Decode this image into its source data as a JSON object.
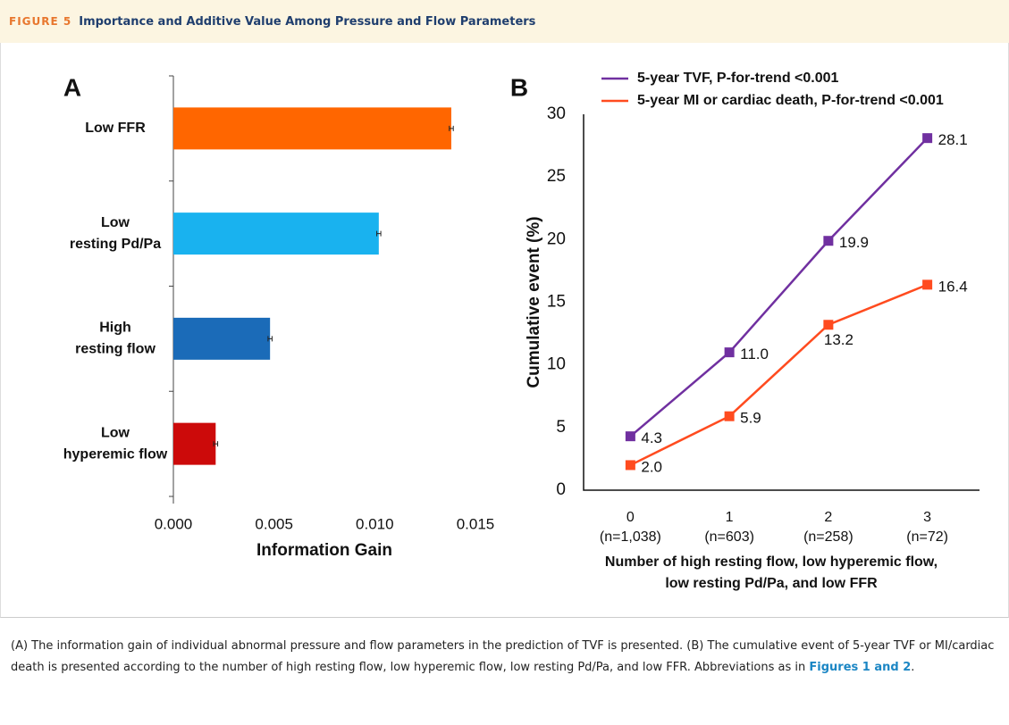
{
  "header": {
    "label": "FIGURE 5",
    "title": "Importance and Additive Value Among Pressure and Flow Parameters"
  },
  "chart_data": [
    {
      "type": "bar",
      "orientation": "horizontal",
      "panel": "A",
      "categories": [
        [
          "Low FFR"
        ],
        [
          "Low",
          "resting Pd/Pa"
        ],
        [
          "High",
          "resting flow"
        ],
        [
          "Low",
          "hyperemic flow"
        ]
      ],
      "values": [
        0.0138,
        0.0102,
        0.0048,
        0.0021
      ],
      "errors": [
        0.0001,
        0.0001,
        0.0001,
        0.0001
      ],
      "colors": [
        "#ff6600",
        "#19b2ef",
        "#1b6bb8",
        "#cc0a0a"
      ],
      "xlim": [
        0,
        0.015
      ],
      "xticks": [
        {
          "value": 0,
          "label": "0.000"
        },
        {
          "value": 0.005,
          "label": "0.005"
        },
        {
          "value": 0.01,
          "label": "0.010"
        },
        {
          "value": 0.015,
          "label": "0.015"
        }
      ],
      "xlabel": "Information Gain"
    },
    {
      "type": "line",
      "panel": "B",
      "categories": [
        [
          "0",
          "(n=1,038)"
        ],
        [
          "1",
          "(n=603)"
        ],
        [
          "2",
          "(n=258)"
        ],
        [
          "3",
          "(n=72)"
        ]
      ],
      "series": [
        {
          "name": "5-year TVF, P-for-trend <0.001",
          "color": "#7030a0",
          "values": [
            4.3,
            11.0,
            19.9,
            28.1
          ],
          "value_labels": [
            "4.3",
            "11.0",
            "19.9",
            "28.1"
          ]
        },
        {
          "name": "5-year MI or cardiac death, P-for-trend <0.001",
          "color": "#ff4b1f",
          "values": [
            2.0,
            5.9,
            13.2,
            16.4
          ],
          "value_labels": [
            "2.0",
            "5.9",
            "13.2",
            "16.4"
          ]
        }
      ],
      "ylim": [
        0,
        30
      ],
      "yticks": [
        0,
        5,
        10,
        15,
        20,
        25,
        30
      ],
      "ylabel": "Cumulative event (%)",
      "xlabel": [
        "Number of high resting flow, low hyperemic flow,",
        "low resting Pd/Pa, and low FFR"
      ],
      "legend": "top"
    }
  ],
  "caption": {
    "before": "(A) The information gain of individual abnormal pressure and flow parameters in the prediction of TVF is presented. (B) The cumulative event of 5-year TVF or MI/cardiac death is presented according to the number of high resting flow, low hyperemic flow, low resting Pd/Pa, and low FFR. Abbreviations as in ",
    "link": "Figures 1 and 2",
    "after": "."
  }
}
